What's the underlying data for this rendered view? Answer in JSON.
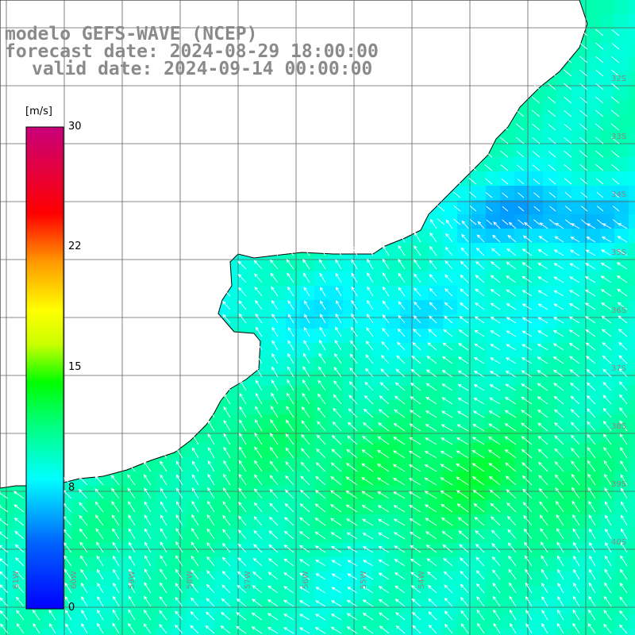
{
  "title": {
    "line1": "modelo GEFS-WAVE (NCEP)",
    "line2": "forecast date: 2024-08-29 18:00:00",
    "line3": "valid date: 2024-09-14 00:00:00"
  },
  "colorbar": {
    "unit": "[m/s]",
    "ticks": [
      "30",
      "22",
      "15",
      "8",
      "0"
    ],
    "min": 0,
    "max": 30
  },
  "lat_labels": [
    "32S",
    "33S",
    "34S",
    "35S",
    "36S",
    "37S",
    "38S",
    "39S",
    "40S"
  ],
  "lon_labels": [
    "61W",
    "60W",
    "59W",
    "58W",
    "57W",
    "56W",
    "55W",
    "54W"
  ],
  "colors": {
    "land": "#ffffff",
    "coast": "#000000",
    "grid": "#606060",
    "title": "#8a8a8a",
    "arrow": "#ffffff"
  }
}
